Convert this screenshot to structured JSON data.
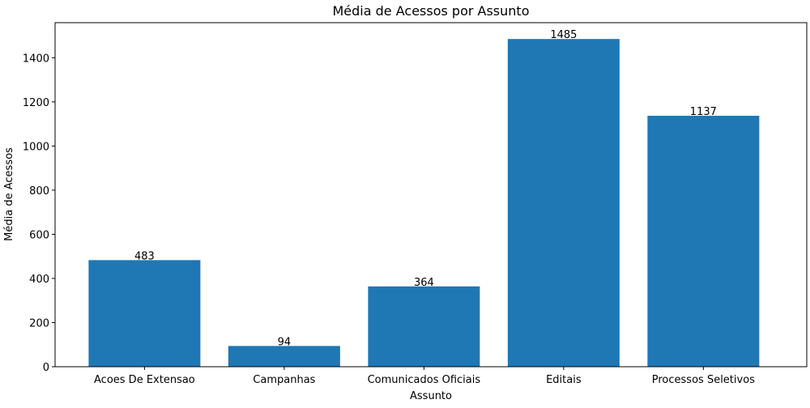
{
  "chart_data": {
    "type": "bar",
    "title": "Média de Acessos por Assunto",
    "xlabel": "Assunto",
    "ylabel": "Média de Acessos",
    "categories": [
      "Acoes De Extensao",
      "Campanhas",
      "Comunicados Oficiais",
      "Editais",
      "Processos Seletivos"
    ],
    "values": [
      483,
      94,
      364,
      1485,
      1137
    ],
    "data_labels": [
      "483",
      "94",
      "364",
      "1485",
      "1137"
    ],
    "yticks": [
      0,
      200,
      400,
      600,
      800,
      1000,
      1200,
      1400
    ],
    "ylim": [
      0,
      1559
    ],
    "grid": false,
    "legend": "none",
    "bar_color": "#1f77b4"
  }
}
